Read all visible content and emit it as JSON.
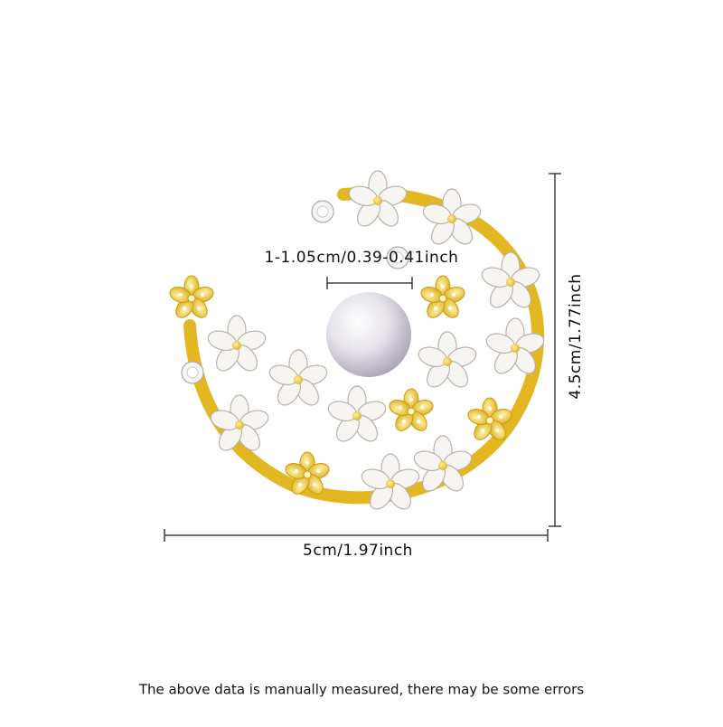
{
  "dimensions": {
    "pearl": "1-1.05cm/0.39-0.41inch",
    "height": "4.5cm/1.77inch",
    "width": "5cm/1.97inch"
  },
  "footer": {
    "note": "The above data is manually measured, there may be some errors"
  }
}
